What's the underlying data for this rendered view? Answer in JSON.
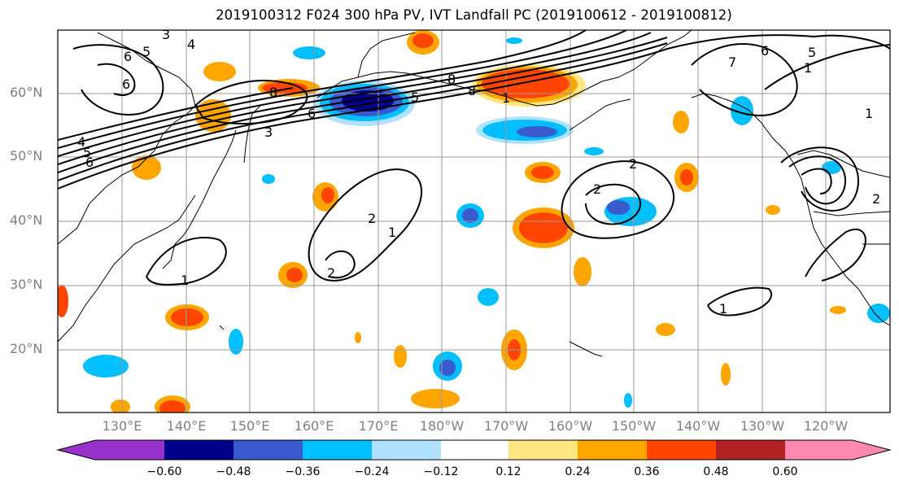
{
  "title": "2019100312 F024 300 hPa PV, IVT Landfall PC (2019100612 - 2019100812)",
  "lat_labels": [
    "60°N",
    "50°N",
    "40°N",
    "30°N",
    "20°N"
  ],
  "lon_labels": [
    "130°E",
    "140°E",
    "150°E",
    "160°E",
    "170°E",
    "180°W",
    "170°W",
    "160°W",
    "150°W",
    "140°W",
    "130°W",
    "120°W"
  ],
  "colorbar": {
    "labels": [
      "−0.60",
      "−0.48",
      "−0.36",
      "−0.24",
      "−0.12",
      "0.12",
      "0.24",
      "0.36",
      "0.48",
      "0.60"
    ],
    "colors": [
      "#9932cc",
      "#00008b",
      "#3a5bcd",
      "#00bfff",
      "#b0e2ff",
      "#ffffff",
      "#ffe680",
      "#ffa500",
      "#ff4500",
      "#b22222",
      "#ff88b0"
    ]
  },
  "contour_labels": [
    "3",
    "4",
    "5",
    "6",
    "6",
    "8",
    "4",
    "5",
    "6",
    "8",
    "3",
    "6",
    "5",
    "8",
    "1",
    "7",
    "6",
    "5",
    "1",
    "2",
    "2",
    "1",
    "2",
    "2",
    "2",
    "1",
    "1",
    "1"
  ],
  "colors": {
    "grid": "#9a9a9a",
    "coast": "#000000",
    "contour": "#000000"
  }
}
